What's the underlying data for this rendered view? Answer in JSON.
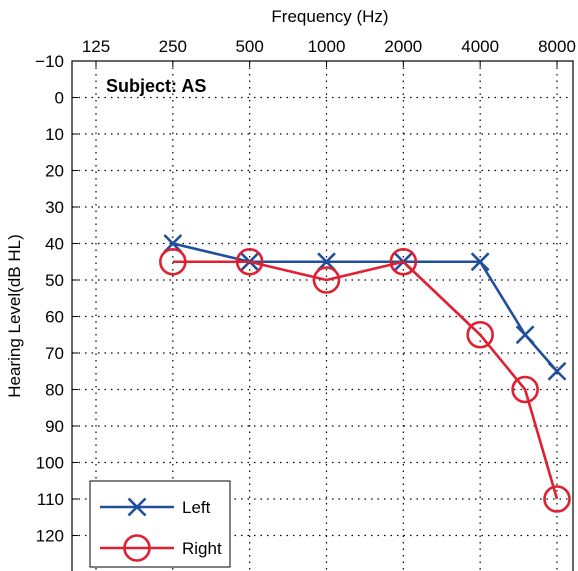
{
  "chart_data": {
    "type": "line",
    "xlabel": "Frequency (Hz)",
    "ylabel": "Hearing Level(dB HL)",
    "annotation": "Subject: AS",
    "x_scale": "log",
    "x_ticks": [
      125,
      250,
      500,
      1000,
      2000,
      4000,
      8000
    ],
    "x_tick_labels": [
      "125",
      "250",
      "500",
      "1000",
      "2000",
      "4000",
      "8000"
    ],
    "xlim": [
      125,
      8000
    ],
    "y_ticks": [
      -10,
      0,
      10,
      20,
      30,
      40,
      50,
      60,
      70,
      80,
      90,
      100,
      110,
      120
    ],
    "y_tick_labels": [
      "−10",
      "0",
      "10",
      "20",
      "30",
      "40",
      "50",
      "60",
      "70",
      "80",
      "90",
      "100",
      "110",
      "120"
    ],
    "ylim": [
      -10,
      130
    ],
    "y_inverted": true,
    "grid": true,
    "legend_position": "bottom-left",
    "series": [
      {
        "name": "Left",
        "color": "#1f4e9c",
        "marker": "x",
        "x": [
          250,
          500,
          1000,
          2000,
          4000,
          6000,
          8000
        ],
        "y": [
          40,
          45,
          45,
          45,
          45,
          65,
          75
        ]
      },
      {
        "name": "Right",
        "color": "#e02030",
        "marker": "o",
        "x": [
          250,
          500,
          1000,
          2000,
          4000,
          6000,
          8000
        ],
        "y": [
          45,
          45,
          50,
          45,
          65,
          80,
          110
        ]
      }
    ]
  }
}
